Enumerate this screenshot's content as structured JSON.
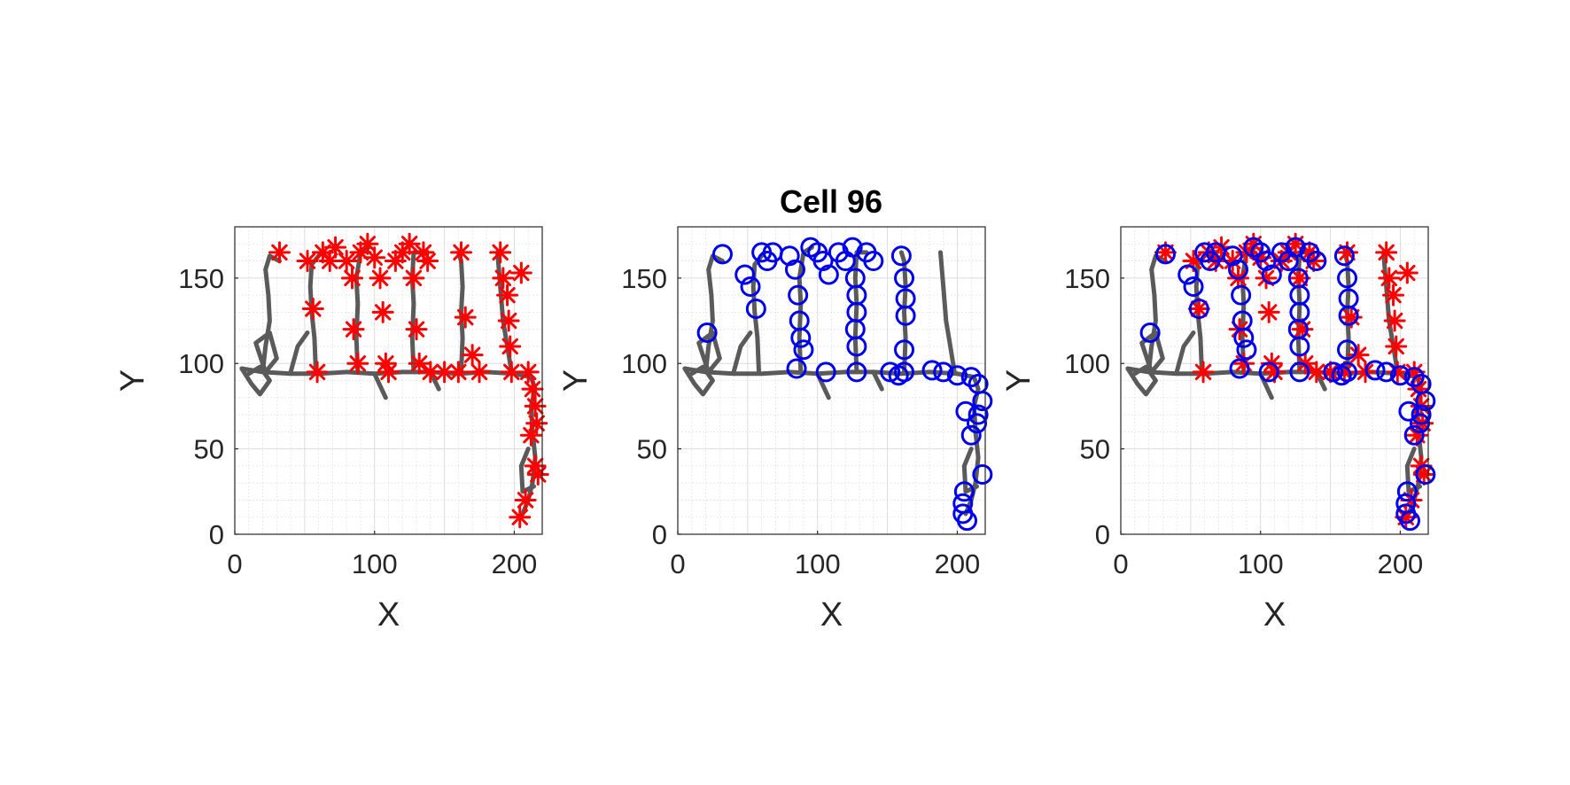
{
  "figure_title": "Cell 96",
  "colors": {
    "trajectory": "#5a5a5a",
    "red_marker": "#ff0000",
    "blue_marker": "#0000ee",
    "grid": "#dcdcdc",
    "axes": "#262626"
  },
  "chart_data": [
    {
      "type": "scatter",
      "title": "",
      "xlabel": "X",
      "ylabel": "Y",
      "xlim": [
        0,
        220
      ],
      "ylim": [
        0,
        180
      ],
      "xticks": [
        "0",
        "100",
        "200"
      ],
      "yticks": [
        "0",
        "50",
        "100",
        "150"
      ],
      "grid": "on (major and minor, dotted)",
      "series": [
        {
          "marker": "asterisk",
          "color": "#ff0000",
          "points": [
            [
              32,
              165
            ],
            [
              52,
              160
            ],
            [
              56,
              132
            ],
            [
              59,
              95
            ],
            [
              63,
              165
            ],
            [
              68,
              160
            ],
            [
              72,
              168
            ],
            [
              80,
              160
            ],
            [
              84,
              150
            ],
            [
              85,
              120
            ],
            [
              88,
              100
            ],
            [
              90,
              165
            ],
            [
              95,
              170
            ],
            [
              100,
              162
            ],
            [
              104,
              150
            ],
            [
              106,
              130
            ],
            [
              108,
              100
            ],
            [
              110,
              95
            ],
            [
              115,
              160
            ],
            [
              120,
              165
            ],
            [
              125,
              170
            ],
            [
              128,
              150
            ],
            [
              130,
              120
            ],
            [
              132,
              100
            ],
            [
              135,
              165
            ],
            [
              138,
              160
            ],
            [
              140,
              95
            ],
            [
              150,
              95
            ],
            [
              160,
              95
            ],
            [
              162,
              165
            ],
            [
              165,
              127
            ],
            [
              170,
              105
            ],
            [
              175,
              95
            ],
            [
              190,
              165
            ],
            [
              192,
              150
            ],
            [
              195,
              140
            ],
            [
              196,
              125
            ],
            [
              197,
              110
            ],
            [
              198,
              95
            ],
            [
              205,
              153
            ],
            [
              210,
              95
            ],
            [
              213,
              85
            ],
            [
              215,
              75
            ],
            [
              216,
              65
            ],
            [
              212,
              58
            ],
            [
              215,
              40
            ],
            [
              217,
              35
            ],
            [
              208,
              20
            ],
            [
              204,
              10
            ]
          ]
        }
      ]
    },
    {
      "type": "scatter",
      "title": "Cell 96",
      "xlabel": "X",
      "ylabel": "Y",
      "xlim": [
        0,
        220
      ],
      "ylim": [
        0,
        180
      ],
      "xticks": [
        "0",
        "100",
        "200"
      ],
      "yticks": [
        "0",
        "50",
        "100",
        "150"
      ],
      "grid": "on (major and minor, dotted)",
      "series": [
        {
          "marker": "circle",
          "color": "#0000ee",
          "points": [
            [
              21,
              118
            ],
            [
              32,
              164
            ],
            [
              48,
              152
            ],
            [
              52,
              145
            ],
            [
              56,
              132
            ],
            [
              60,
              165
            ],
            [
              64,
              160
            ],
            [
              68,
              165
            ],
            [
              80,
              163
            ],
            [
              84,
              155
            ],
            [
              86,
              140
            ],
            [
              87,
              125
            ],
            [
              88,
              115
            ],
            [
              90,
              108
            ],
            [
              85,
              97
            ],
            [
              95,
              168
            ],
            [
              100,
              165
            ],
            [
              104,
              160
            ],
            [
              108,
              152
            ],
            [
              106,
              95
            ],
            [
              115,
              165
            ],
            [
              120,
              160
            ],
            [
              125,
              168
            ],
            [
              127,
              150
            ],
            [
              128,
              140
            ],
            [
              128,
              130
            ],
            [
              127,
              120
            ],
            [
              128,
              110
            ],
            [
              128,
              95
            ],
            [
              135,
              165
            ],
            [
              140,
              160
            ],
            [
              152,
              95
            ],
            [
              158,
              93
            ],
            [
              160,
              163
            ],
            [
              162,
              150
            ],
            [
              163,
              138
            ],
            [
              163,
              128
            ],
            [
              162,
              108
            ],
            [
              162,
              95
            ],
            [
              182,
              96
            ],
            [
              190,
              95
            ],
            [
              200,
              93
            ],
            [
              210,
              92
            ],
            [
              215,
              88
            ],
            [
              218,
              78
            ],
            [
              215,
              70
            ],
            [
              206,
              72
            ],
            [
              210,
              58
            ],
            [
              214,
              65
            ],
            [
              218,
              35
            ],
            [
              205,
              25
            ],
            [
              204,
              18
            ],
            [
              204,
              12
            ],
            [
              207,
              8
            ]
          ]
        }
      ]
    },
    {
      "type": "scatter",
      "title": "",
      "xlabel": "X",
      "ylabel": "Y",
      "xlim": [
        0,
        220
      ],
      "ylim": [
        0,
        180
      ],
      "xticks": [
        "0",
        "100",
        "200"
      ],
      "yticks": [
        "0",
        "50",
        "100",
        "150"
      ],
      "grid": "on (major and minor, dotted)",
      "series": [
        {
          "marker": "asterisk",
          "color": "#ff0000",
          "points": [
            [
              32,
              165
            ],
            [
              52,
              160
            ],
            [
              56,
              132
            ],
            [
              59,
              95
            ],
            [
              63,
              165
            ],
            [
              68,
              160
            ],
            [
              72,
              168
            ],
            [
              80,
              160
            ],
            [
              84,
              150
            ],
            [
              85,
              120
            ],
            [
              88,
              100
            ],
            [
              90,
              165
            ],
            [
              95,
              170
            ],
            [
              100,
              162
            ],
            [
              104,
              150
            ],
            [
              106,
              130
            ],
            [
              108,
              100
            ],
            [
              110,
              95
            ],
            [
              115,
              160
            ],
            [
              120,
              165
            ],
            [
              125,
              170
            ],
            [
              128,
              150
            ],
            [
              130,
              120
            ],
            [
              132,
              100
            ],
            [
              135,
              165
            ],
            [
              138,
              160
            ],
            [
              140,
              95
            ],
            [
              150,
              95
            ],
            [
              160,
              95
            ],
            [
              162,
              165
            ],
            [
              165,
              127
            ],
            [
              170,
              105
            ],
            [
              175,
              95
            ],
            [
              190,
              165
            ],
            [
              192,
              150
            ],
            [
              195,
              140
            ],
            [
              196,
              125
            ],
            [
              197,
              110
            ],
            [
              198,
              95
            ],
            [
              205,
              153
            ],
            [
              210,
              95
            ],
            [
              213,
              85
            ],
            [
              215,
              75
            ],
            [
              216,
              65
            ],
            [
              212,
              58
            ],
            [
              215,
              40
            ],
            [
              217,
              35
            ],
            [
              208,
              20
            ],
            [
              204,
              10
            ]
          ]
        },
        {
          "marker": "circle",
          "color": "#0000ee",
          "points": [
            [
              21,
              118
            ],
            [
              32,
              164
            ],
            [
              48,
              152
            ],
            [
              52,
              145
            ],
            [
              56,
              132
            ],
            [
              60,
              165
            ],
            [
              64,
              160
            ],
            [
              68,
              165
            ],
            [
              80,
              163
            ],
            [
              84,
              155
            ],
            [
              86,
              140
            ],
            [
              87,
              125
            ],
            [
              88,
              115
            ],
            [
              90,
              108
            ],
            [
              85,
              97
            ],
            [
              95,
              168
            ],
            [
              100,
              165
            ],
            [
              104,
              160
            ],
            [
              108,
              152
            ],
            [
              106,
              95
            ],
            [
              115,
              165
            ],
            [
              120,
              160
            ],
            [
              125,
              168
            ],
            [
              127,
              150
            ],
            [
              128,
              140
            ],
            [
              128,
              130
            ],
            [
              127,
              120
            ],
            [
              128,
              110
            ],
            [
              128,
              95
            ],
            [
              135,
              165
            ],
            [
              140,
              160
            ],
            [
              152,
              95
            ],
            [
              158,
              93
            ],
            [
              160,
              163
            ],
            [
              162,
              150
            ],
            [
              163,
              138
            ],
            [
              163,
              128
            ],
            [
              162,
              108
            ],
            [
              162,
              95
            ],
            [
              182,
              96
            ],
            [
              190,
              95
            ],
            [
              200,
              93
            ],
            [
              210,
              92
            ],
            [
              215,
              88
            ],
            [
              218,
              78
            ],
            [
              215,
              70
            ],
            [
              206,
              72
            ],
            [
              210,
              58
            ],
            [
              214,
              65
            ],
            [
              218,
              35
            ],
            [
              205,
              25
            ],
            [
              204,
              18
            ],
            [
              204,
              12
            ],
            [
              207,
              8
            ]
          ]
        }
      ]
    }
  ],
  "trajectory": [
    [
      [
        5,
        97
      ],
      [
        20,
        95
      ],
      [
        40,
        94
      ],
      [
        60,
        94
      ],
      [
        80,
        95
      ],
      [
        100,
        94
      ],
      [
        120,
        95
      ],
      [
        140,
        95
      ],
      [
        160,
        94
      ],
      [
        180,
        95
      ],
      [
        200,
        94
      ],
      [
        212,
        92
      ],
      [
        215,
        85
      ],
      [
        212,
        75
      ],
      [
        213,
        60
      ],
      [
        215,
        45
      ],
      [
        213,
        30
      ],
      [
        210,
        20
      ],
      [
        206,
        12
      ]
    ],
    [
      [
        20,
        95
      ],
      [
        22,
        110
      ],
      [
        25,
        125
      ],
      [
        24,
        140
      ],
      [
        22,
        155
      ],
      [
        25,
        163
      ],
      [
        32,
        160
      ]
    ],
    [
      [
        58,
        95
      ],
      [
        57,
        115
      ],
      [
        55,
        130
      ],
      [
        54,
        145
      ],
      [
        55,
        158
      ],
      [
        62,
        165
      ]
    ],
    [
      [
        88,
        95
      ],
      [
        87,
        115
      ],
      [
        88,
        135
      ],
      [
        87,
        150
      ],
      [
        90,
        165
      ],
      [
        96,
        168
      ]
    ],
    [
      [
        128,
        95
      ],
      [
        127,
        115
      ],
      [
        128,
        135
      ],
      [
        127,
        150
      ],
      [
        128,
        165
      ],
      [
        135,
        165
      ]
    ],
    [
      [
        162,
        95
      ],
      [
        163,
        115
      ],
      [
        162,
        130
      ],
      [
        163,
        145
      ],
      [
        162,
        160
      ],
      [
        160,
        165
      ]
    ],
    [
      [
        188,
        165
      ],
      [
        190,
        145
      ],
      [
        192,
        125
      ],
      [
        195,
        110
      ],
      [
        198,
        95
      ]
    ],
    [
      [
        5,
        97
      ],
      [
        12,
        88
      ],
      [
        18,
        82
      ],
      [
        25,
        90
      ],
      [
        18,
        98
      ],
      [
        10,
        94
      ]
    ],
    [
      [
        22,
        95
      ],
      [
        15,
        112
      ],
      [
        25,
        118
      ],
      [
        30,
        103
      ],
      [
        22,
        95
      ]
    ],
    [
      [
        40,
        95
      ],
      [
        45,
        110
      ],
      [
        52,
        118
      ]
    ],
    [
      [
        100,
        94
      ],
      [
        108,
        80
      ]
    ],
    [
      [
        140,
        95
      ],
      [
        146,
        85
      ]
    ],
    [
      [
        210,
        50
      ],
      [
        205,
        40
      ],
      [
        206,
        25
      ],
      [
        214,
        28
      ]
    ]
  ]
}
